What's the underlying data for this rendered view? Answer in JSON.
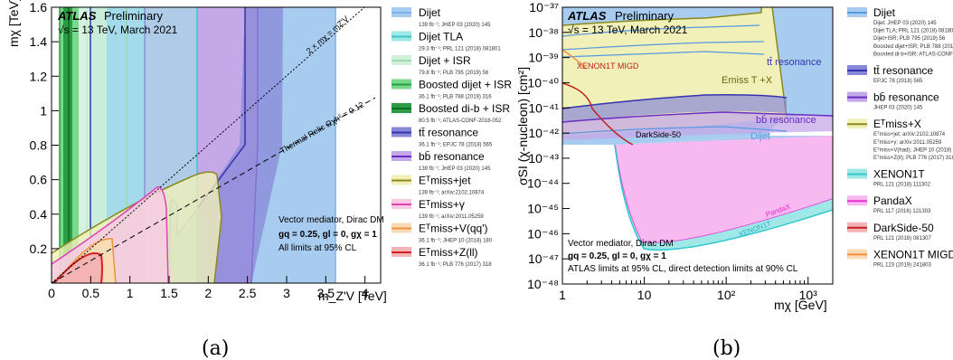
{
  "captions": {
    "a": "(a)",
    "b": "(b)"
  },
  "chart_data": [
    {
      "type": "area",
      "panel": "a",
      "xlabel": "m_Z'V [TeV]",
      "ylabel": "mχ [TeV]",
      "xlim": [
        0,
        4.2
      ],
      "ylim": [
        0,
        1.6
      ],
      "xticks": [
        "0",
        "0.5",
        "1",
        "1.5",
        "2",
        "2.5",
        "3",
        "3.5",
        "4"
      ],
      "yticks": [
        "0.2",
        "0.4",
        "0.6",
        "0.8",
        "1",
        "1.2",
        "1.4",
        "1.6"
      ],
      "header": {
        "atlas": "ATLAS",
        "prelim": "Preliminary",
        "energy": "√s = 13 TeV, March 2021"
      },
      "notes": {
        "line1": "Vector mediator, Dirac DM",
        "line2": "gq = 0.25, gl = 0, gχ = 1",
        "line3": "All limits at 95% CL"
      },
      "annotations": {
        "kin": "2 × mχ = mZ'V",
        "relic": "Thermal Relic Ωχh² = 0.12"
      },
      "series": [
        {
          "name": "Dijet",
          "x_range": [
            0.5,
            3.65
          ],
          "color": "#a8ccf0",
          "line": "#78b2ec"
        },
        {
          "name": "Dijet TLA",
          "x_range": [
            0.45,
            1.8
          ],
          "color": "#a0e8e8",
          "line": "#3cc4c8"
        },
        {
          "name": "Dijet + ISR",
          "x_range": [
            0.35,
            0.7
          ],
          "color": "#d0f0d8",
          "line": "#9cd8b0"
        },
        {
          "name": "Boosted dijet + ISR",
          "x_range": [
            0.1,
            0.35
          ],
          "color": "#78d88c",
          "line": "#22a040"
        },
        {
          "name": "Boosted di-b + ISR",
          "x_range": [
            0.15,
            0.25
          ],
          "color": "#2c9c44",
          "line": "#0c6c24"
        },
        {
          "name": "tt̄ resonance",
          "x_range": [
            1.5,
            2.5
          ],
          "color": "#8888d8",
          "line": "#3434b0"
        },
        {
          "name": "bb̄ resonance",
          "x_range": [
            1.2,
            2.6
          ],
          "color": "#c4a8e8",
          "line": "#6a2cc4"
        },
        {
          "name": "Emiss T + jet",
          "x_max": 2.0,
          "y_max": 0.78,
          "color": "#f0f0b8",
          "line": "#8a8a1c"
        },
        {
          "name": "Emiss T + γ",
          "x_max": 1.55,
          "y_max": 0.64,
          "color": "#f8c8e4",
          "line": "#e040b8"
        },
        {
          "name": "Emiss T + V(qq')",
          "x_max": 0.85,
          "y_max": 0.22,
          "color": "#f8dcb8",
          "line": "#f0903c"
        },
        {
          "name": "Emiss T + Z(ll)",
          "x_max": 0.6,
          "y_max": 0.15,
          "color": "#f4b4b4",
          "line": "#d42020"
        }
      ]
    },
    {
      "type": "area",
      "panel": "b",
      "xlabel": "mχ [GeV]",
      "ylabel": "σSI (χ-nucleon) [cm²]",
      "x_log": true,
      "y_log": true,
      "xlim": [
        1,
        2000
      ],
      "ylim": [
        1e-48,
        1e-37
      ],
      "xticks": [
        "1",
        "10",
        "10²",
        "10³"
      ],
      "yticks": [
        "10⁻³⁷",
        "10⁻³⁸",
        "10⁻³⁹",
        "10⁻⁴⁰",
        "10⁻⁴¹",
        "10⁻⁴²",
        "10⁻⁴³",
        "10⁻⁴⁴",
        "10⁻⁴⁵",
        "10⁻⁴⁶",
        "10⁻⁴⁷",
        "10⁻⁴⁸"
      ],
      "header": {
        "atlas": "ATLAS",
        "prelim": "Preliminary",
        "energy": "√s = 13 TeV, March 2021"
      },
      "notes": {
        "line1": "Vector mediator, Dirac DM",
        "line2": "gq = 0.25, gl = 0, gχ = 1",
        "line3": "ATLAS limits at 95% CL, direct detection limits at 90% CL"
      },
      "labels": {
        "tt": "tt̄ resonance",
        "met": "Emiss T +X",
        "bb": "bb̄ resonance",
        "dijet": "Dijet",
        "xmigd": "XENON1T MIGD",
        "ds": "DarkSide-50",
        "pandax": "PandaX",
        "xenon": "XENON1T"
      },
      "series": [
        {
          "name": "Dijet",
          "color": "#a8ccf0",
          "line": "#5898e0"
        },
        {
          "name": "tt̄ resonance",
          "color": "#8888d8",
          "line": "#3434b0"
        },
        {
          "name": "bb̄ resonance",
          "color": "#c4a8e8",
          "line": "#6a2cc4"
        },
        {
          "name": "Emiss T +X",
          "color": "#f0f0b8",
          "line": "#8a8a1c"
        },
        {
          "name": "XENON1T",
          "color": "#a0e8e8",
          "line": "#30c8d0"
        },
        {
          "name": "PandaX",
          "color": "#f8b8f0",
          "line": "#e030d0"
        },
        {
          "name": "DarkSide-50",
          "color": "#f4b4b4",
          "line": "#c02020"
        },
        {
          "name": "XENON1T MIGD",
          "color": "#f8dcb8",
          "line": "#f0903c"
        }
      ]
    }
  ],
  "legend_a": [
    {
      "name": "Dijet",
      "ref": "139 fb⁻¹; JHEP 03 (2020) 145",
      "color": "#a8ccf0",
      "line": "#78b2ec"
    },
    {
      "name": "Dijet TLA",
      "ref": "29.3 fb⁻¹; PRL 121 (2018) 081801",
      "color": "#a0e8e8",
      "line": "#3cc4c8"
    },
    {
      "name": "Dijet + ISR",
      "ref": "79.8 fb⁻¹; PLB 795 (2019) 56",
      "color": "#d0f0d8",
      "line": "#9cd8b0"
    },
    {
      "name": "Boosted dijet + ISR",
      "ref": "36.1 fb⁻¹; PLB 788 (2019) 316",
      "color": "#78d88c",
      "line": "#22a040"
    },
    {
      "name": "Boosted di-b + ISR",
      "ref": "80.5 fb⁻¹; ATLAS-CONF-2018-052",
      "color": "#2c9c44",
      "line": "#0c6c24"
    },
    {
      "name": "tt̄ resonance",
      "ref": "36.1 fb⁻¹; EPJC 78 (2018) 565",
      "color": "#8888d8",
      "line": "#3434b0"
    },
    {
      "name": "bb̄ resonance",
      "ref": "139 fb⁻¹; JHEP 03 (2020) 145",
      "color": "#c4a8e8",
      "line": "#6a2cc4"
    },
    {
      "name": "Eᵀmiss+jet",
      "ref": "139 fb⁻¹; arXiv:2102.10874",
      "color": "#f0f0b8",
      "line": "#8a8a1c"
    },
    {
      "name": "Eᵀmiss+γ",
      "ref": "139 fb⁻¹; arXiv:2011.05259",
      "color": "#f8c8e4",
      "line": "#e040b8"
    },
    {
      "name": "Eᵀmiss+V(qq')",
      "ref": "36.1 fb⁻¹; JHEP 10 (2018) 180",
      "color": "#f8dcb8",
      "line": "#f0903c"
    },
    {
      "name": "Eᵀmiss+Z(ll)",
      "ref": "36.1 fb⁻¹; PLB 776 (2017) 318",
      "color": "#f4b4b4",
      "line": "#d42020"
    }
  ],
  "legend_b": [
    {
      "name": "Dijet",
      "refs": [
        "Dijet: JHEP 03 (2020) 145",
        "Dijet TLA; PRL 121 (2018) 081801",
        "Dijet+ISR; PLB 795 (2019) 56",
        "Boosted dijet+ISR; PLB 788 (2019) 316",
        "Boosted di-b+ISR; ATLAS-CONF-2018-052"
      ],
      "color": "#a8ccf0",
      "line": "#5898e0"
    },
    {
      "name": "tt̄ resonance",
      "refs": [
        "EPJC 78 (2018) 565"
      ],
      "color": "#8888d8",
      "line": "#3434b0"
    },
    {
      "name": "bb̄ resonance",
      "refs": [
        "JHEP 03 (2020) 145"
      ],
      "color": "#c4a8e8",
      "line": "#6a2cc4"
    },
    {
      "name": "Eᵀmiss+X",
      "refs": [
        "Eᵀmiss+jet; arXiv:2102.10874",
        "Eᵀmiss+γ; arXiv:2011.05259",
        "Eᵀmiss+V(had); JHEP 10 (2018) 180",
        "Eᵀmiss+Z(ll); PLB 776 (2017) 318"
      ],
      "color": "#f0f0b8",
      "line": "#8a8a1c"
    },
    {
      "name": "XENON1T",
      "refs": [
        "PRL 121 (2018) 111302"
      ],
      "color": "#a0e8e8",
      "line": "#30c8d0"
    },
    {
      "name": "PandaX",
      "refs": [
        "PRL 117 (2016) 121303"
      ],
      "color": "#f8b8f0",
      "line": "#e030d0"
    },
    {
      "name": "DarkSide-50",
      "refs": [
        "PRL 121 (2018) 081307"
      ],
      "color": "#f4b4b4",
      "line": "#c02020"
    },
    {
      "name": "XENON1T MIGD",
      "refs": [
        "PRL 123 (2019) 241803"
      ],
      "color": "#f8dcb8",
      "line": "#f0903c"
    }
  ]
}
